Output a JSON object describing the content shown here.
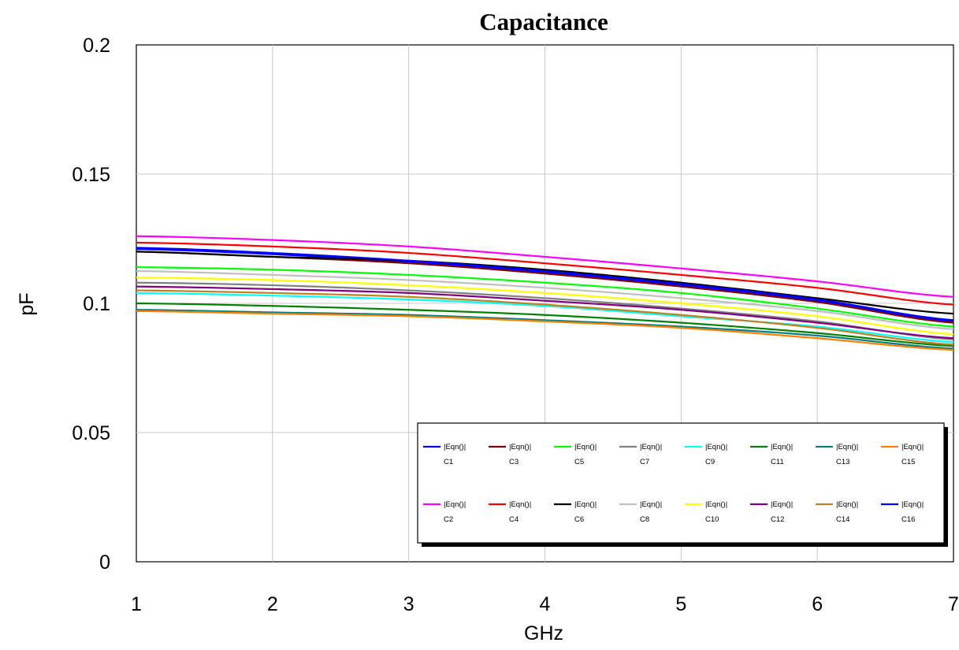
{
  "chart_data": {
    "type": "line",
    "title": "Capacitance",
    "xlabel": "GHz",
    "ylabel": "pF",
    "xlim": [
      1,
      7
    ],
    "ylim": [
      0,
      0.2
    ],
    "xticks": [
      "1",
      "2",
      "3",
      "4",
      "5",
      "6",
      "7"
    ],
    "yticks": [
      "0",
      "0.05",
      "0.1",
      "0.15",
      "0.2"
    ],
    "grid": true,
    "legend_position": "bottom-right",
    "x": [
      1,
      2,
      3,
      4,
      5,
      6,
      7
    ],
    "series": [
      {
        "name": "|Eqn()|",
        "sub": "C1",
        "color": "#0000ff",
        "values": [
          0.121,
          0.119,
          0.116,
          0.112,
          0.107,
          0.101,
          0.093
        ]
      },
      {
        "name": "|Eqn()|",
        "sub": "C3",
        "color": "#800000",
        "values": [
          0.12,
          0.118,
          0.1155,
          0.1115,
          0.1065,
          0.1005,
          0.0925
        ]
      },
      {
        "name": "|Eqn()|",
        "sub": "C5",
        "color": "#00ff00",
        "values": [
          0.114,
          0.113,
          0.111,
          0.108,
          0.104,
          0.098,
          0.091
        ]
      },
      {
        "name": "|Eqn()|",
        "sub": "C7",
        "color": "#808080",
        "values": [
          0.108,
          0.107,
          0.105,
          0.102,
          0.098,
          0.093,
          0.086
        ]
      },
      {
        "name": "|Eqn()|",
        "sub": "C9",
        "color": "#00ffff",
        "values": [
          0.104,
          0.103,
          0.1015,
          0.099,
          0.095,
          0.091,
          0.085
        ]
      },
      {
        "name": "|Eqn()|",
        "sub": "C11",
        "color": "#008000",
        "values": [
          0.1,
          0.099,
          0.0975,
          0.0955,
          0.0925,
          0.0885,
          0.0835
        ]
      },
      {
        "name": "|Eqn()|",
        "sub": "C13",
        "color": "#008080",
        "values": [
          0.0975,
          0.0965,
          0.0955,
          0.0935,
          0.091,
          0.0875,
          0.0825
        ]
      },
      {
        "name": "|Eqn()|",
        "sub": "C15",
        "color": "#ff8000",
        "values": [
          0.097,
          0.096,
          0.095,
          0.093,
          0.0905,
          0.0865,
          0.082
        ]
      },
      {
        "name": "|Eqn()|",
        "sub": "C2",
        "color": "#ff00ff",
        "values": [
          0.126,
          0.1245,
          0.122,
          0.118,
          0.1135,
          0.1085,
          0.1025
        ]
      },
      {
        "name": "|Eqn()|",
        "sub": "C4",
        "color": "#ff0000",
        "values": [
          0.1235,
          0.122,
          0.1195,
          0.1155,
          0.111,
          0.106,
          0.0995
        ]
      },
      {
        "name": "|Eqn()|",
        "sub": "C6",
        "color": "#000000",
        "values": [
          0.12,
          0.118,
          0.1165,
          0.113,
          0.108,
          0.102,
          0.096
        ]
      },
      {
        "name": "|Eqn()|",
        "sub": "C8",
        "color": "#c0c0c0",
        "values": [
          0.1125,
          0.111,
          0.109,
          0.106,
          0.102,
          0.097,
          0.09
        ]
      },
      {
        "name": "|Eqn()|",
        "sub": "C10",
        "color": "#ffff00",
        "values": [
          0.11,
          0.109,
          0.107,
          0.104,
          0.1,
          0.095,
          0.088
        ]
      },
      {
        "name": "|Eqn()|",
        "sub": "C12",
        "color": "#800080",
        "values": [
          0.1065,
          0.1055,
          0.104,
          0.101,
          0.0975,
          0.0925,
          0.0865
        ]
      },
      {
        "name": "|Eqn()|",
        "sub": "C14",
        "color": "#c08020",
        "values": [
          0.105,
          0.104,
          0.1025,
          0.0995,
          0.0955,
          0.0905,
          0.084
        ]
      },
      {
        "name": "|Eqn()|",
        "sub": "C16",
        "color": "#0000ff",
        "values": [
          0.1215,
          0.1195,
          0.1165,
          0.1125,
          0.1075,
          0.1015,
          0.0935
        ]
      }
    ]
  }
}
